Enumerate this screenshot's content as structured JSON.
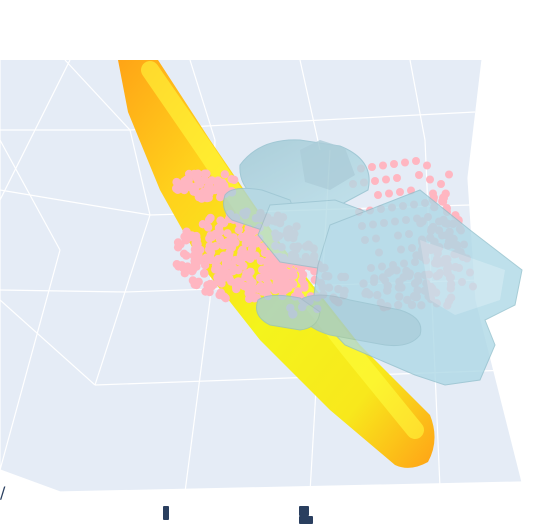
{
  "scene": {
    "kind": "3d-scatter-mesh",
    "background_color": "#e5ecf6",
    "grid_color": "#ffffff",
    "paper_color": "#ffffff",
    "traces": [
      {
        "name": "",
        "role": "gripper-mesh",
        "color": "#add8e6",
        "opacity": 0.7
      },
      {
        "name": "",
        "role": "object-point-cloud",
        "color": "#ffb6c1"
      },
      {
        "name": "",
        "role": "grasp-axis-capsule",
        "colorscale": [
          "#ffff00",
          "#ffa500"
        ]
      }
    ],
    "visible_tick_labels": [
      "",
      "",
      ""
    ]
  }
}
